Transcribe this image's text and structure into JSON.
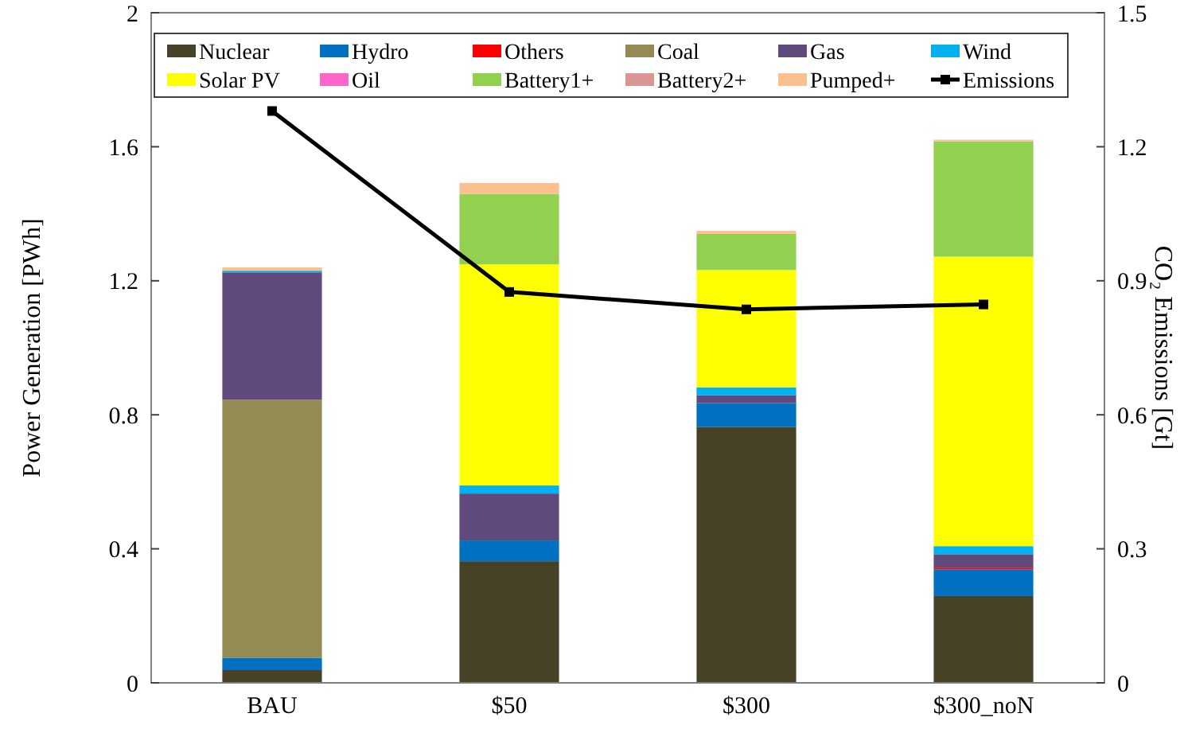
{
  "chart_data": {
    "type": "bar",
    "stacked": true,
    "categories": [
      "BAU",
      "$50",
      "$300",
      "$300_noN"
    ],
    "ylabel": "Power Generation [PWh]",
    "y2label": "CO₂ Emissions [Gt]",
    "ylim": [
      0,
      2
    ],
    "yticks": [
      0,
      0.4,
      0.8,
      1.2,
      1.6,
      2
    ],
    "y2lim": [
      0,
      1.5
    ],
    "y2ticks": [
      0,
      0.3,
      0.6,
      0.9,
      1.2,
      1.5
    ],
    "legend": "top",
    "grid": false,
    "series": [
      {
        "name": "Nuclear",
        "color": "#474126",
        "values": [
          0.038,
          0.363,
          0.764,
          0.259
        ]
      },
      {
        "name": "Hydro",
        "color": "#0070c0",
        "values": [
          0.037,
          0.062,
          0.071,
          0.08
        ]
      },
      {
        "name": "Others",
        "color": "#ff0000",
        "values": [
          0,
          0,
          0,
          0.005
        ]
      },
      {
        "name": "Coal",
        "color": "#948a54",
        "values": [
          0.77,
          0,
          0,
          0
        ]
      },
      {
        "name": "Gas",
        "color": "#604a7b",
        "values": [
          0.38,
          0.14,
          0.023,
          0.04
        ]
      },
      {
        "name": "Wind",
        "color": "#00b0f0",
        "values": [
          0.005,
          0.024,
          0.024,
          0.024
        ]
      },
      {
        "name": "Solar PV",
        "color": "#ffff00",
        "values": [
          0,
          0.66,
          0.35,
          0.864
        ]
      },
      {
        "name": "Oil",
        "color": "#ff66cc",
        "values": [
          0,
          0,
          0,
          0
        ]
      },
      {
        "name": "Battery1+",
        "color": "#92d050",
        "values": [
          0,
          0.21,
          0.108,
          0.344
        ]
      },
      {
        "name": "Battery2+",
        "color": "#da9694",
        "values": [
          0,
          0,
          0,
          0
        ]
      },
      {
        "name": "Pumped+",
        "color": "#fac090",
        "values": [
          0.01,
          0.033,
          0.009,
          0.005
        ]
      },
      {
        "name": "Emissions",
        "type": "line",
        "axis": "y2",
        "color": "#000000",
        "marker": "square",
        "values": [
          1.28,
          0.875,
          0.836,
          0.847
        ]
      }
    ]
  }
}
